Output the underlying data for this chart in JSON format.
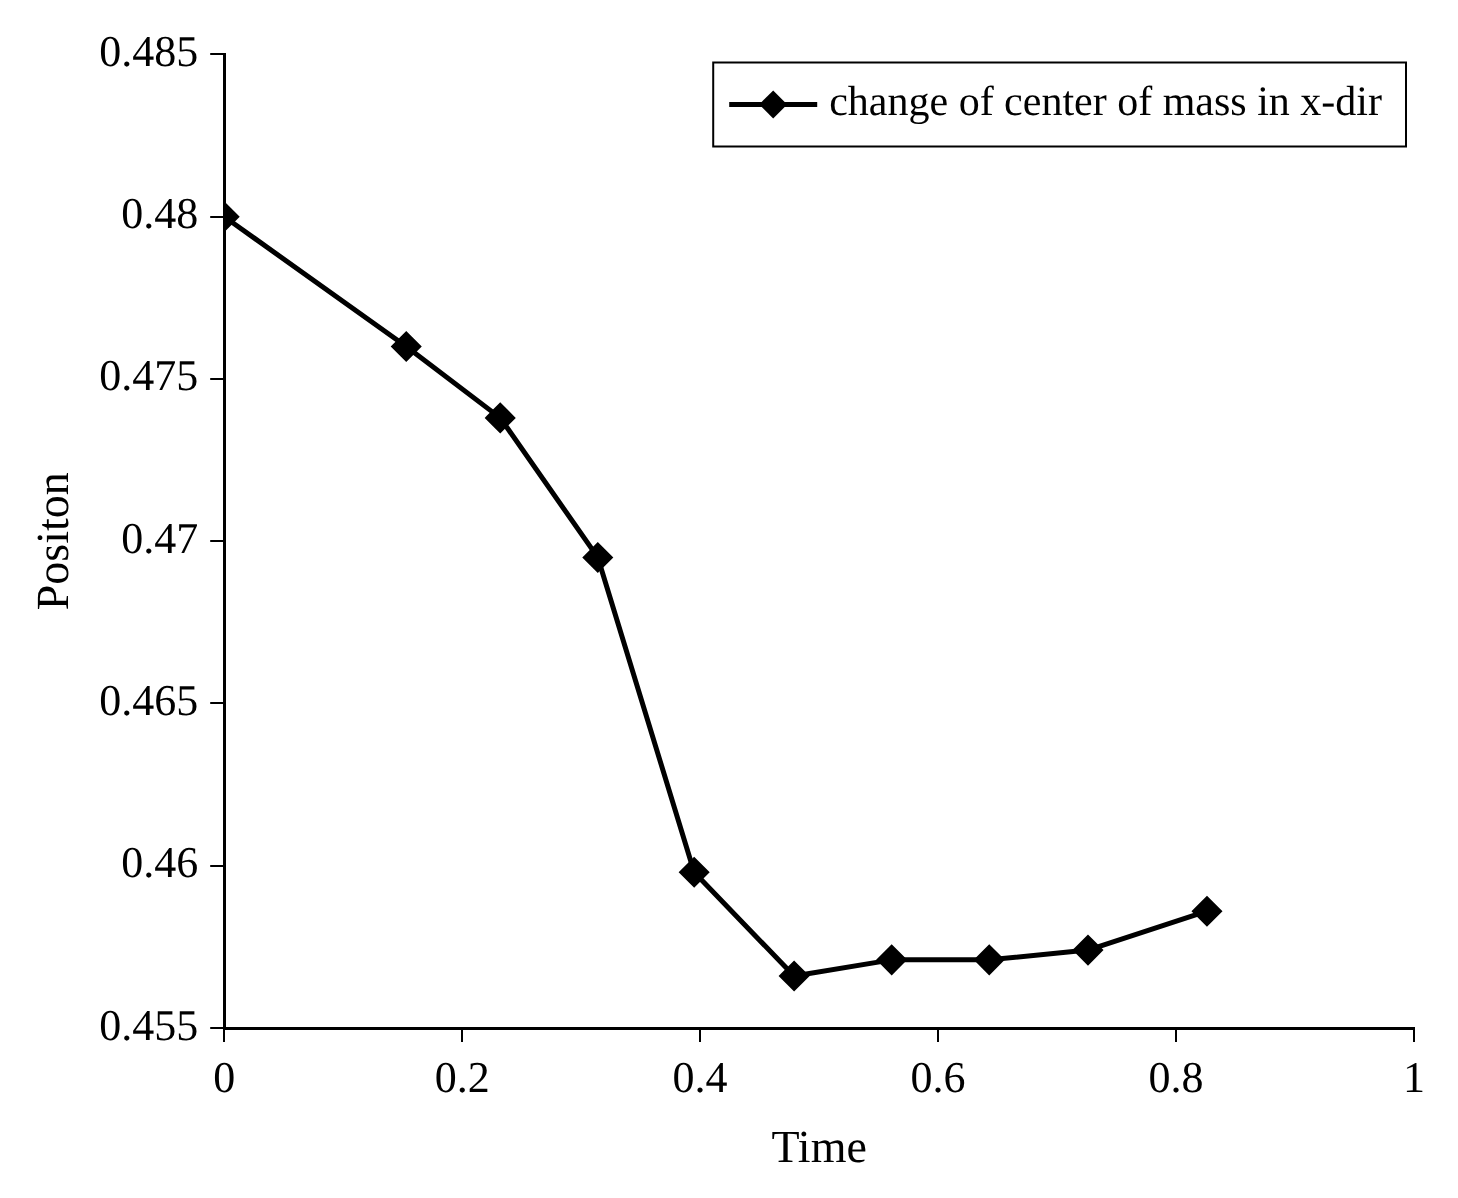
{
  "chart_data": {
    "type": "line",
    "xlabel": "Time",
    "ylabel": "Positon",
    "x": [
      0,
      0.153,
      0.232,
      0.314,
      0.395,
      0.479,
      0.561,
      0.643,
      0.726,
      0.826
    ],
    "series": [
      {
        "name": "change of center of mass in x-dir",
        "color": "#000000",
        "values": [
          0.48,
          0.476,
          0.4738,
          0.4695,
          0.4598,
          0.4566,
          0.4571,
          0.4571,
          0.4574,
          0.4586
        ]
      }
    ],
    "xlim": [
      0,
      1
    ],
    "xticks": [
      0,
      0.2,
      0.4,
      0.6,
      0.8,
      1
    ],
    "ylim": [
      0.455,
      0.485
    ],
    "yticks": [
      0.455,
      0.46,
      0.465,
      0.47,
      0.475,
      0.48,
      0.485
    ],
    "grid": false,
    "legend": "top right",
    "marker": "diamond",
    "line_style": "solid"
  }
}
